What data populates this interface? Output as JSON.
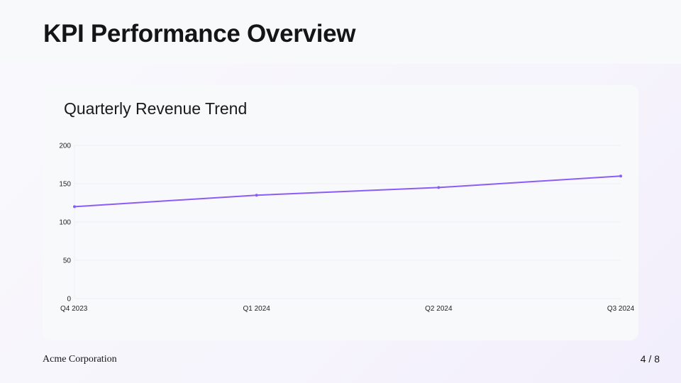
{
  "slide": {
    "title": "KPI Performance Overview",
    "footer": "Acme Corporation",
    "page": "4 / 8"
  },
  "chart_data": {
    "type": "line",
    "title": "Quarterly Revenue Trend",
    "categories": [
      "Q4 2023",
      "Q1 2024",
      "Q2 2024",
      "Q3 2024"
    ],
    "series": [
      {
        "values": [
          120,
          135,
          145,
          160
        ],
        "color": "#8b5cf6"
      }
    ],
    "ylim": [
      0,
      200
    ],
    "yticks": [
      0,
      50,
      100,
      150,
      200
    ],
    "grid": true,
    "xlabel": "",
    "ylabel": ""
  }
}
